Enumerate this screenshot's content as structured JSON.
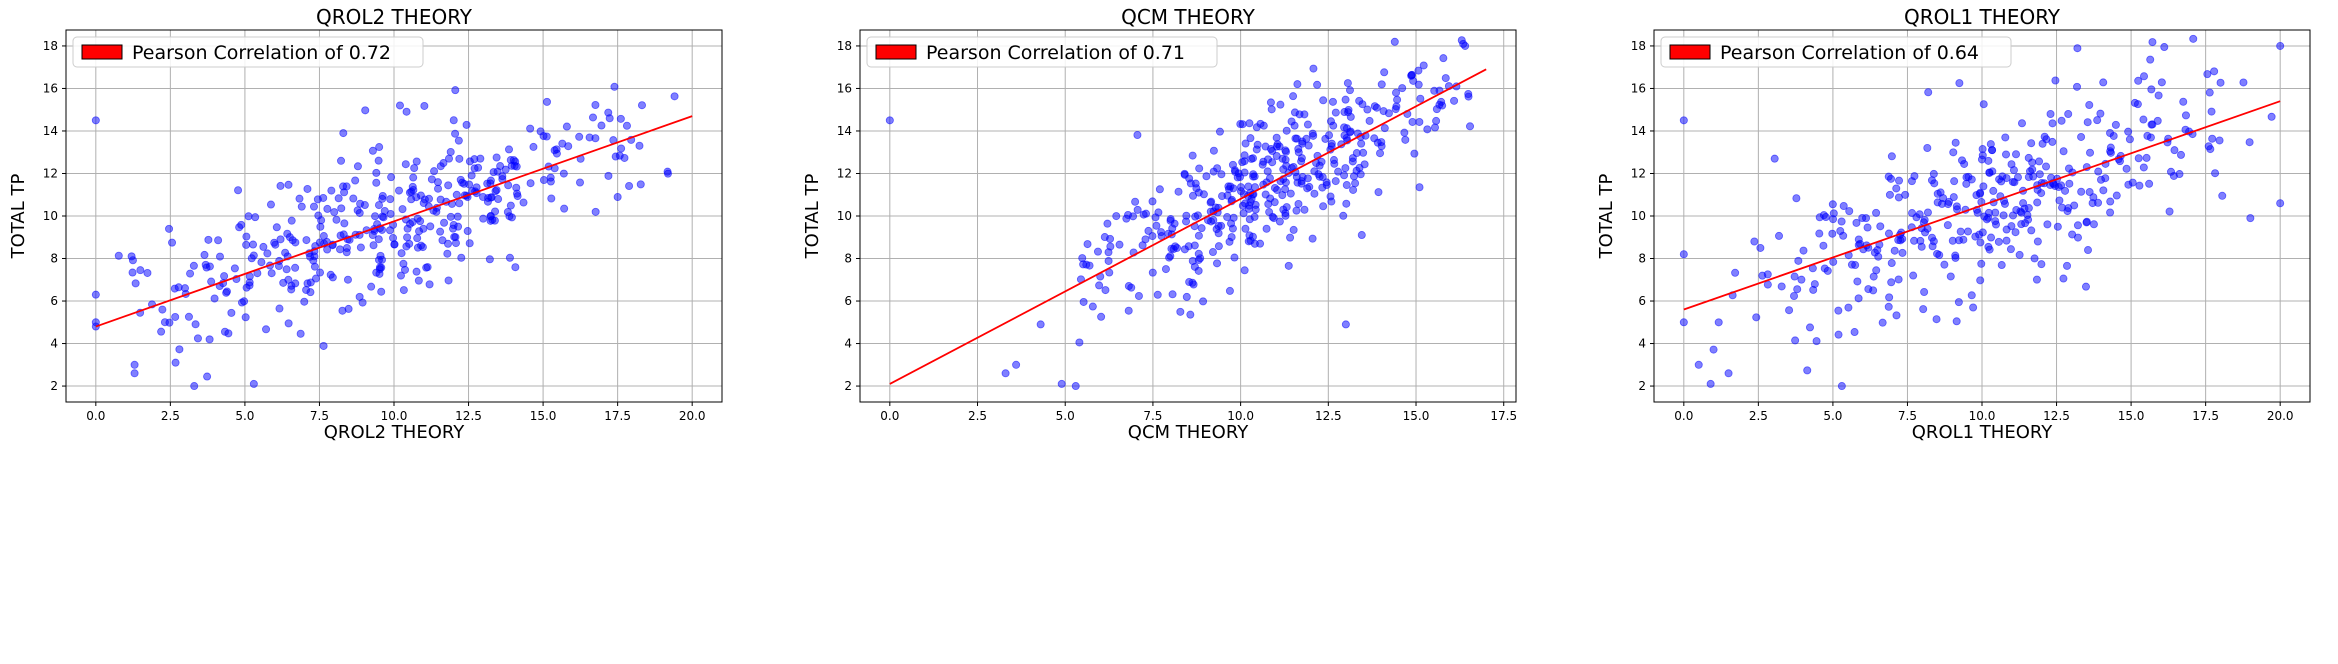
{
  "colors": {
    "points": "#0000ff",
    "fit_line": "#ff0000",
    "grid": "#b0b0b0"
  },
  "chart_data": [
    {
      "type": "scatter",
      "title": "QROL2 THEORY",
      "xlabel": "QROL2 THEORY",
      "ylabel": "TOTAL TP",
      "xlim": [
        -1,
        21
      ],
      "ylim": [
        1.25,
        18.75
      ],
      "xticks": [
        "0.0",
        "2.5",
        "5.0",
        "7.5",
        "10.0",
        "12.5",
        "15.0",
        "17.5",
        "20.0"
      ],
      "yticks": [
        "2",
        "4",
        "6",
        "8",
        "10",
        "12",
        "14",
        "16",
        "18"
      ],
      "grid": true,
      "legend": {
        "location": "top-left",
        "label": "Pearson Correlation of 0.72"
      },
      "fit_line": {
        "x": [
          0,
          20
        ],
        "y": [
          4.8,
          14.7
        ]
      },
      "outliers": [
        [
          0,
          14.5
        ],
        [
          0,
          6.3
        ],
        [
          0,
          5.0
        ],
        [
          0,
          4.8
        ],
        [
          1.3,
          3.0
        ],
        [
          1.3,
          2.6
        ],
        [
          3.3,
          2.0
        ],
        [
          5.3,
          2.1
        ],
        [
          1.2,
          8.1
        ],
        [
          8.3,
          13.9
        ],
        [
          10.2,
          15.2
        ]
      ],
      "points": {
        "n": 400,
        "x_range": [
          0,
          20
        ],
        "slope": 0.495,
        "intercept": 4.8,
        "noise_sd": 1.65,
        "seed": 11
      }
    },
    {
      "type": "scatter",
      "title": "QCM THEORY",
      "xlabel": "QCM THEORY",
      "ylabel": "TOTAL TP",
      "xlim": [
        -0.85,
        17.85
      ],
      "ylim": [
        1.25,
        18.75
      ],
      "xticks": [
        "0.0",
        "2.5",
        "5.0",
        "7.5",
        "10.0",
        "12.5",
        "15.0",
        "17.5"
      ],
      "yticks": [
        "2",
        "4",
        "6",
        "8",
        "10",
        "12",
        "14",
        "16",
        "18"
      ],
      "grid": true,
      "legend": {
        "location": "top-left",
        "label": "Pearson Correlation of 0.71"
      },
      "fit_line": {
        "x": [
          0,
          17
        ],
        "y": [
          2.1,
          16.9
        ]
      },
      "outliers": [
        [
          0,
          14.5
        ],
        [
          3.3,
          2.6
        ],
        [
          3.6,
          3.0
        ],
        [
          4.9,
          2.1
        ],
        [
          5.3,
          2.0
        ],
        [
          4.3,
          4.9
        ],
        [
          16.4,
          18.0
        ],
        [
          13.0,
          4.9
        ]
      ],
      "points": {
        "n": 400,
        "x_range": [
          5,
          17
        ],
        "slope": 0.87,
        "intercept": 2.1,
        "noise_sd": 1.7,
        "seed": 23
      }
    },
    {
      "type": "scatter",
      "title": "QROL1 THEORY",
      "xlabel": "QROL1 THEORY",
      "ylabel": "TOTAL TP",
      "xlim": [
        -1,
        21
      ],
      "ylim": [
        1.25,
        18.75
      ],
      "xticks": [
        "0.0",
        "2.5",
        "5.0",
        "7.5",
        "10.0",
        "12.5",
        "15.0",
        "17.5",
        "20.0"
      ],
      "yticks": [
        "2",
        "4",
        "6",
        "8",
        "10",
        "12",
        "14",
        "16",
        "18"
      ],
      "grid": true,
      "legend": {
        "location": "top-left",
        "label": "Pearson Correlation of 0.64"
      },
      "fit_line": {
        "x": [
          0,
          20
        ],
        "y": [
          5.6,
          15.4
        ]
      },
      "outliers": [
        [
          0,
          14.5
        ],
        [
          0,
          8.2
        ],
        [
          0,
          5.0
        ],
        [
          0.5,
          3.0
        ],
        [
          0.9,
          2.1
        ],
        [
          1.5,
          2.6
        ],
        [
          5.3,
          2.0
        ],
        [
          20.0,
          18.0
        ],
        [
          19.0,
          9.9
        ],
        [
          20.0,
          10.6
        ]
      ],
      "points": {
        "n": 380,
        "x_range": [
          0.5,
          20
        ],
        "slope": 0.49,
        "intercept": 5.6,
        "noise_sd": 2.0,
        "seed": 37
      }
    }
  ]
}
